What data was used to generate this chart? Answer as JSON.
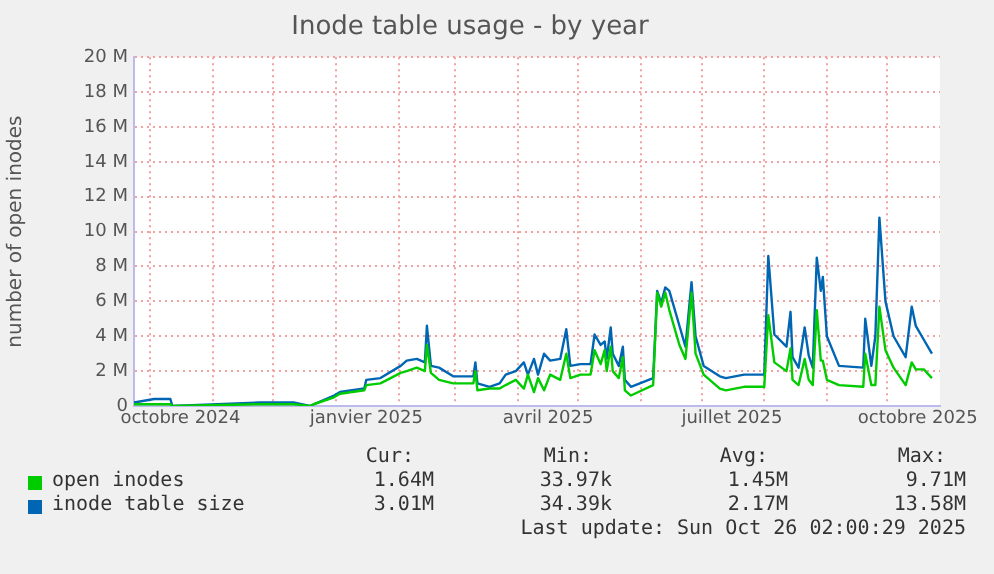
{
  "chart_data": {
    "type": "line",
    "title": "Inode table usage - by year",
    "ylabel": "number of open inodes",
    "x": [
      "2024-09-23",
      "2024-10-03",
      "2024-10-11",
      "2024-10-12",
      "2024-11-24",
      "2024-12-11",
      "2024-12-19",
      "2024-12-21",
      "2024-12-31",
      "2025-01-03",
      "2025-01-15",
      "2025-01-16",
      "2025-01-23",
      "2025-02-02",
      "2025-02-05",
      "2025-02-10",
      "2025-02-14",
      "2025-02-15",
      "2025-02-17",
      "2025-02-21",
      "2025-02-28",
      "2025-03-10",
      "2025-03-11",
      "2025-03-12",
      "2025-03-18",
      "2025-03-23",
      "2025-03-26",
      "2025-03-31",
      "2025-04-04",
      "2025-04-06",
      "2025-04-09",
      "2025-04-11",
      "2025-04-14",
      "2025-04-17",
      "2025-04-22",
      "2025-04-25",
      "2025-04-27",
      "2025-05-02",
      "2025-05-07",
      "2025-05-09",
      "2025-05-12",
      "2025-05-14",
      "2025-05-15",
      "2025-05-17",
      "2025-05-18",
      "2025-05-21",
      "2025-05-23",
      "2025-05-24",
      "2025-05-27",
      "2025-06-07",
      "2025-06-09",
      "2025-06-11",
      "2025-06-13",
      "2025-06-15",
      "2025-06-20",
      "2025-06-23",
      "2025-06-26",
      "2025-06-28",
      "2025-07-02",
      "2025-07-10",
      "2025-07-13",
      "2025-07-22",
      "2025-08-01",
      "2025-08-03",
      "2025-08-06",
      "2025-08-12",
      "2025-08-14",
      "2025-08-15",
      "2025-08-18",
      "2025-08-21",
      "2025-08-23",
      "2025-08-25",
      "2025-08-27",
      "2025-08-29",
      "2025-08-30",
      "2025-09-01",
      "2025-09-07",
      "2025-09-19",
      "2025-09-20",
      "2025-09-23",
      "2025-09-25",
      "2025-09-27",
      "2025-09-30",
      "2025-10-04",
      "2025-10-10",
      "2025-10-13",
      "2025-10-15",
      "2025-10-19",
      "2025-10-23"
    ],
    "series": [
      {
        "name": "open inodes",
        "color": "#00cc00",
        "values": [
          0.1,
          0.1,
          0.1,
          0,
          0.1,
          0.1,
          0,
          0.1,
          0.5,
          0.7,
          0.9,
          1.2,
          1.3,
          1.9,
          2.0,
          2.2,
          2.0,
          3.5,
          1.9,
          1.5,
          1.3,
          1.3,
          2.0,
          0.9,
          1.0,
          1.0,
          1.2,
          1.5,
          1.0,
          1.8,
          0.8,
          1.6,
          0.9,
          1.8,
          1.5,
          3.0,
          1.6,
          1.8,
          1.8,
          3.2,
          2.4,
          3.2,
          2.0,
          3.4,
          2.0,
          1.6,
          2.8,
          0.9,
          0.6,
          1.2,
          6.5,
          5.7,
          6.5,
          5.5,
          3.5,
          2.7,
          6.5,
          3.0,
          1.8,
          1.0,
          0.9,
          1.1,
          1.1,
          5.2,
          2.5,
          2.0,
          3.3,
          1.5,
          1.2,
          2.7,
          1.5,
          1.2,
          5.5,
          2.6,
          2.6,
          1.5,
          1.2,
          1.1,
          3.0,
          1.2,
          1.2,
          5.7,
          3.2,
          2.2,
          1.2,
          2.5,
          2.1,
          2.1,
          1.6
        ]
      },
      {
        "name": "inode table size",
        "color": "#0066b3",
        "values": [
          0.2,
          0.4,
          0.4,
          0,
          0.2,
          0.2,
          0,
          0.1,
          0.6,
          0.8,
          1.0,
          1.5,
          1.6,
          2.3,
          2.6,
          2.7,
          2.5,
          4.6,
          2.3,
          2.2,
          1.7,
          1.7,
          2.5,
          1.3,
          1.1,
          1.3,
          1.8,
          2.0,
          2.5,
          1.8,
          2.7,
          1.8,
          3.0,
          2.6,
          2.7,
          4.4,
          2.3,
          2.4,
          2.4,
          4.1,
          3.5,
          3.7,
          2.7,
          4.5,
          3.0,
          2.3,
          3.4,
          1.5,
          1.1,
          1.6,
          6.6,
          5.9,
          6.8,
          6.6,
          4.6,
          3.4,
          7.1,
          4.0,
          2.3,
          1.7,
          1.6,
          1.8,
          1.8,
          8.6,
          4.1,
          3.4,
          5.4,
          2.8,
          2.2,
          4.5,
          2.9,
          2.2,
          8.5,
          6.6,
          7.4,
          4.0,
          2.3,
          2.2,
          5.0,
          2.3,
          4.0,
          10.8,
          6.0,
          4.0,
          2.8,
          5.7,
          4.6,
          3.8,
          3.0
        ]
      }
    ],
    "xlim": [
      "2024-09-23",
      "2025-10-27"
    ],
    "xticks": [
      {
        "value": "2024-10-01",
        "label": null
      },
      {
        "value": "2024-10-16",
        "label": "octobre 2024"
      },
      {
        "value": "2024-11-01",
        "label": null
      },
      {
        "value": "2024-12-01",
        "label": null
      },
      {
        "value": "2025-01-01",
        "label": null
      },
      {
        "value": "2025-01-16",
        "label": "janvier 2025"
      },
      {
        "value": "2025-02-01",
        "label": null
      },
      {
        "value": "2025-03-01",
        "label": null
      },
      {
        "value": "2025-04-01",
        "label": null
      },
      {
        "value": "2025-04-16",
        "label": "avril 2025"
      },
      {
        "value": "2025-05-01",
        "label": null
      },
      {
        "value": "2025-06-01",
        "label": null
      },
      {
        "value": "2025-07-01",
        "label": null
      },
      {
        "value": "2025-07-16",
        "label": "juillet 2025"
      },
      {
        "value": "2025-08-01",
        "label": null
      },
      {
        "value": "2025-09-01",
        "label": null
      },
      {
        "value": "2025-10-01",
        "label": null
      },
      {
        "value": "2025-10-16",
        "label": "octobre 2025"
      }
    ],
    "ylim": [
      0,
      20
    ],
    "yticks": [
      {
        "value": 0,
        "label": "0"
      },
      {
        "value": 2,
        "label": "2 M"
      },
      {
        "value": 4,
        "label": "4 M"
      },
      {
        "value": 6,
        "label": "6 M"
      },
      {
        "value": 8,
        "label": "8 M"
      },
      {
        "value": 10,
        "label": "10 M"
      },
      {
        "value": 12,
        "label": "12 M"
      },
      {
        "value": 14,
        "label": "14 M"
      },
      {
        "value": 16,
        "label": "16 M"
      },
      {
        "value": 18,
        "label": "18 M"
      },
      {
        "value": 20,
        "label": "20 M"
      }
    ],
    "grid": true,
    "legend": "bottom",
    "marker": "none",
    "line_style": "solid",
    "annotations": [
      "Cur:",
      "Min:",
      "Avg:",
      "Max:",
      "1.64M",
      "33.97k",
      "1.45M",
      "9.71M",
      "3.01M",
      "34.39k",
      "2.17M",
      "13.58M",
      "Last update: Sun Oct 26 02:00:29 2025"
    ]
  }
}
